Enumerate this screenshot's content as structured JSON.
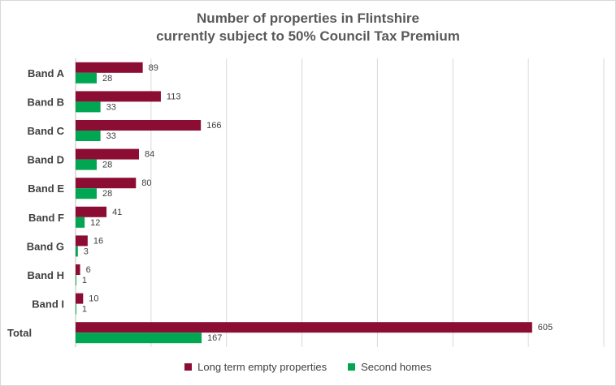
{
  "chart_data": {
    "type": "bar",
    "orientation": "horizontal",
    "title_lines": [
      "Number of properties in Flintshire",
      "currently subject to 50% Council Tax Premium"
    ],
    "categories": [
      "Band A",
      "Band B",
      "Band C",
      "Band D",
      "Band E",
      "Band F",
      "Band G",
      "Band H",
      "Band I",
      "Total"
    ],
    "series": [
      {
        "name": "Long term empty properties",
        "color": "#8b0d33",
        "values": [
          89,
          113,
          166,
          84,
          80,
          41,
          16,
          6,
          10,
          605
        ]
      },
      {
        "name": "Second homes",
        "color": "#00a651",
        "values": [
          28,
          33,
          33,
          28,
          28,
          12,
          3,
          1,
          1,
          167
        ]
      }
    ],
    "xlim": [
      0,
      700
    ],
    "x_gridline_step": 100,
    "x_tick_labels_shown": false,
    "grid": true,
    "data_labels": true,
    "legend_position": "bottom"
  }
}
